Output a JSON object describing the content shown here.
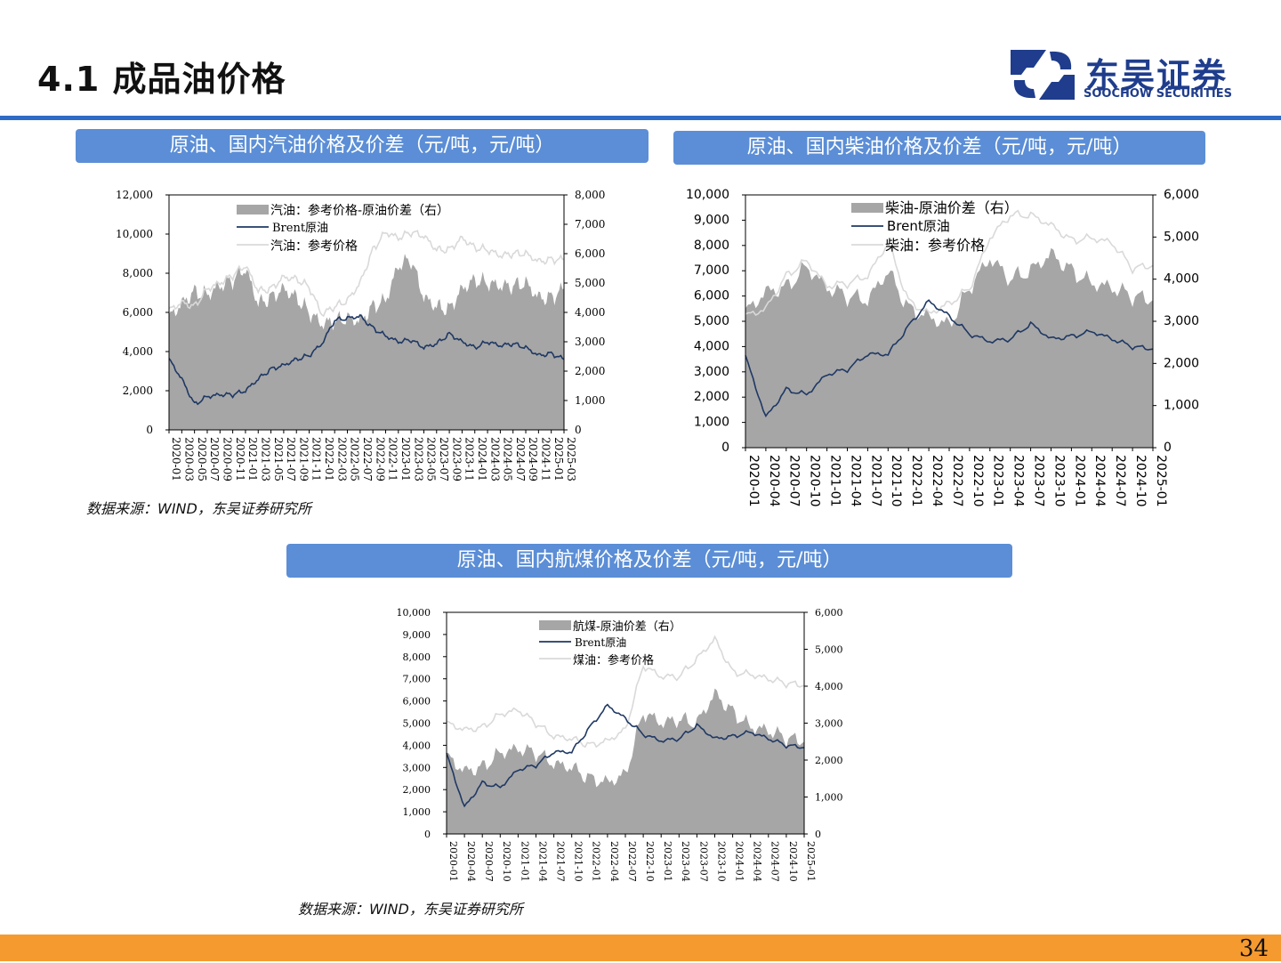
{
  "header": {
    "title": "4.1 成品油价格"
  },
  "logo": {
    "cn": "东吴证券",
    "en": "SOOCHOW SECURITIES"
  },
  "page_number": "34",
  "colors": {
    "accent": "#2E6BC6",
    "banner": "#5B8ED6",
    "footer": "#F59A2F",
    "area": "#A6A6A6",
    "brent": "#1F3864",
    "ref": "#D9D9D9"
  },
  "charts": [
    {
      "title": "原油、国内汽油价格及价差（元/吨，元/吨）"
    },
    {
      "title": "原油、国内柴油价格及价差（元/吨，元/吨）"
    },
    {
      "title": "原油、国内航煤价格及价差（元/吨，元/吨）"
    }
  ],
  "source_text": "数据来源：WIND，东吴证券研究所",
  "chart_data": [
    {
      "type": "area+line",
      "title": "原油、国内汽油价格及价差（元/吨，元/吨）",
      "x": [
        "2020-01",
        "2020-03",
        "2020-05",
        "2020-07",
        "2020-09",
        "2020-11",
        "2021-01",
        "2021-03",
        "2021-05",
        "2021-07",
        "2021-09",
        "2021-11",
        "2022-01",
        "2022-03",
        "2022-05",
        "2022-07",
        "2022-09",
        "2022-11",
        "2023-01",
        "2023-03",
        "2023-05",
        "2023-07",
        "2023-09",
        "2023-11",
        "2024-01",
        "2024-03",
        "2024-05",
        "2024-07",
        "2024-09",
        "2024-11",
        "2025-01",
        "2025-03"
      ],
      "ylim": [
        0,
        12000
      ],
      "y2lim": [
        0,
        8000
      ],
      "yticks": [
        "12,000",
        "10,000",
        "8,000",
        "6,000",
        "4,000",
        "2,000",
        "0"
      ],
      "y2ticks": [
        "8,000",
        "7,000",
        "6,000",
        "5,000",
        "4,000",
        "3,000",
        "2,000",
        "1,000",
        "0"
      ],
      "series": [
        {
          "name": "汽油：参考价格-原油价差（右）",
          "type": "area",
          "axis": "right",
          "values": [
            3800,
            4300,
            4700,
            4600,
            4900,
            5100,
            5500,
            4300,
            4500,
            4800,
            4500,
            4000,
            3600,
            3700,
            3800,
            3700,
            4200,
            4400,
            5600,
            5800,
            4500,
            4200,
            4100,
            4800,
            5100,
            5000,
            4900,
            4900,
            5000,
            4500,
            4500,
            4800
          ]
        },
        {
          "name": "Brent原油",
          "type": "line",
          "axis": "left",
          "values": [
            3600,
            2600,
            1300,
            1700,
            1800,
            1800,
            2000,
            2600,
            3100,
            3300,
            3600,
            3800,
            4400,
            5600,
            5700,
            5800,
            5200,
            4800,
            4500,
            4600,
            4200,
            4400,
            4900,
            4500,
            4200,
            4500,
            4300,
            4400,
            4200,
            3800,
            3900,
            3600
          ]
        },
        {
          "name": "汽油：参考价格",
          "type": "line",
          "axis": "left",
          "values": [
            6100,
            6500,
            6300,
            7200,
            7500,
            7900,
            8400,
            7100,
            7200,
            7800,
            7700,
            7300,
            5900,
            6300,
            6600,
            7500,
            9200,
            10100,
            9800,
            10100,
            9900,
            9200,
            9200,
            9800,
            9300,
            9200,
            8900,
            9000,
            9000,
            8600,
            8700,
            8700
          ]
        }
      ]
    },
    {
      "type": "area+line",
      "title": "原油、国内柴油价格及价差（元/吨，元/吨）",
      "x": [
        "2020-01",
        "2020-04",
        "2020-07",
        "2020-10",
        "2021-01",
        "2021-04",
        "2021-07",
        "2021-10",
        "2022-01",
        "2022-04",
        "2022-07",
        "2022-10",
        "2023-01",
        "2023-04",
        "2023-07",
        "2023-10",
        "2024-01",
        "2024-04",
        "2024-07",
        "2024-10",
        "2025-01"
      ],
      "ylim": [
        0,
        10000
      ],
      "y2lim": [
        0,
        6000
      ],
      "yticks": [
        "10,000",
        "9,000",
        "8,000",
        "7,000",
        "6,000",
        "5,000",
        "4,000",
        "3,000",
        "2,000",
        "1,000",
        "0"
      ],
      "y2ticks": [
        "6,000",
        "5,000",
        "4,000",
        "3,000",
        "2,000",
        "1,000",
        "0"
      ],
      "series": [
        {
          "name": "柴油-原油价差（右）",
          "type": "area",
          "axis": "right",
          "values": [
            3200,
            3700,
            3800,
            4300,
            3800,
            3600,
            3500,
            4200,
            3300,
            3100,
            2900,
            3800,
            4500,
            4000,
            4200,
            4600,
            4200,
            3900,
            3800,
            3600,
            3500
          ]
        },
        {
          "name": "Brent原油",
          "type": "line",
          "axis": "left",
          "values": [
            3600,
            1200,
            2300,
            2100,
            2900,
            3100,
            3700,
            3700,
            4800,
            5800,
            5200,
            4500,
            4200,
            4300,
            4900,
            4300,
            4400,
            4600,
            4300,
            4000,
            3900
          ]
        },
        {
          "name": "柴油：参考价格",
          "type": "line",
          "axis": "left",
          "values": [
            5200,
            5500,
            6800,
            7400,
            6400,
            6500,
            6800,
            8100,
            5800,
            5300,
            5700,
            6300,
            8300,
            9200,
            9200,
            8800,
            8200,
            8300,
            8100,
            7100,
            7200
          ]
        }
      ]
    },
    {
      "type": "area+line",
      "title": "原油、国内航煤价格及价差（元/吨，元/吨）",
      "x": [
        "2020-01",
        "2020-04",
        "2020-07",
        "2020-10",
        "2021-01",
        "2021-04",
        "2021-07",
        "2021-10",
        "2022-01",
        "2022-04",
        "2022-07",
        "2022-10",
        "2023-01",
        "2023-04",
        "2023-07",
        "2023-10",
        "2024-01",
        "2024-04",
        "2024-07",
        "2024-10",
        "2025-01"
      ],
      "ylim": [
        0,
        10000
      ],
      "y2lim": [
        0,
        6000
      ],
      "yticks": [
        "10,000",
        "9,000",
        "8,000",
        "7,000",
        "6,000",
        "5,000",
        "4,000",
        "3,000",
        "2,000",
        "1,000",
        "0"
      ],
      "y2ticks": [
        "6,000",
        "5,000",
        "4,000",
        "3,000",
        "2,000",
        "1,000",
        "0"
      ],
      "series": [
        {
          "name": "航煤-原油价差（右）",
          "type": "area",
          "axis": "right",
          "values": [
            2100,
            1700,
            1800,
            2200,
            2300,
            2200,
            1900,
            1800,
            1500,
            1400,
            1600,
            3300,
            3000,
            3100,
            3000,
            3800,
            3300,
            2900,
            2800,
            2600,
            2500
          ]
        },
        {
          "name": "Brent原油",
          "type": "line",
          "axis": "left",
          "values": [
            3600,
            1200,
            2300,
            2100,
            2900,
            3100,
            3700,
            3700,
            4800,
            5800,
            5200,
            4500,
            4200,
            4300,
            4900,
            4300,
            4400,
            4600,
            4300,
            4000,
            3900
          ]
        },
        {
          "name": "煤油：参考价格",
          "type": "line",
          "axis": "left",
          "values": [
            5000,
            4700,
            4800,
            5400,
            5600,
            5000,
            4400,
            4300,
            4000,
            4200,
            4700,
            7600,
            7100,
            7100,
            7900,
            8800,
            7300,
            7200,
            7000,
            6800,
            6700
          ]
        }
      ]
    }
  ]
}
